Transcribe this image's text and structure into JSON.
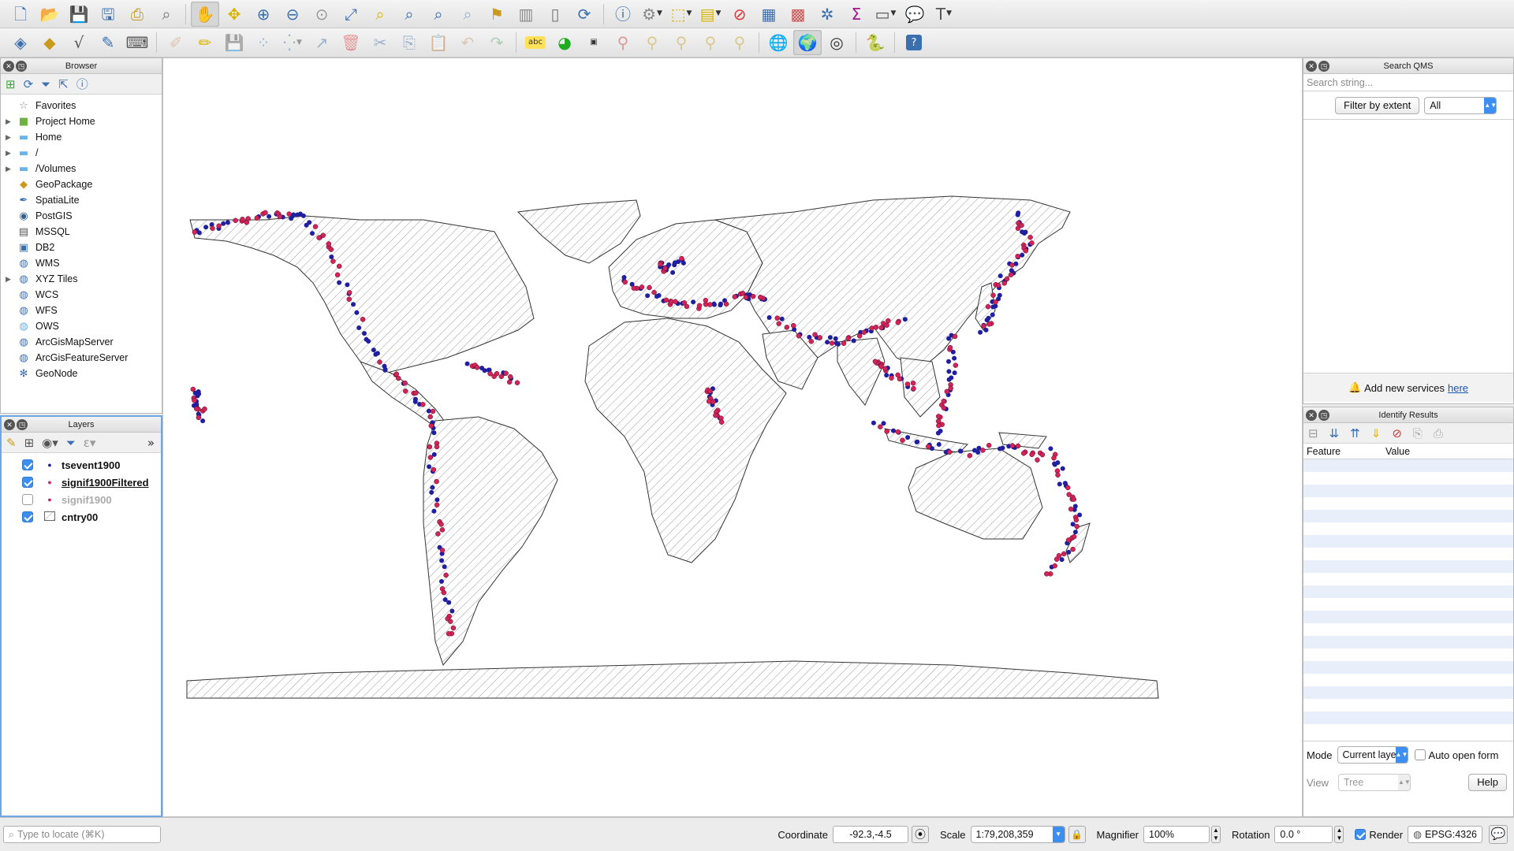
{
  "toolbar1": {
    "icons": [
      "new-project-icon",
      "open-project-icon",
      "save-project-icon",
      "save-as-icon",
      "print-layout-icon",
      "layout-manager-icon",
      "pan-icon",
      "pan-to-selection-icon",
      "zoom-in-icon",
      "zoom-out-icon",
      "zoom-native-icon",
      "zoom-full-icon",
      "zoom-to-selection-icon",
      "zoom-to-layer-icon",
      "zoom-last-icon",
      "zoom-next-icon",
      "new-bookmark-icon",
      "show-bookmarks-icon",
      "temporal-icon",
      "refresh-icon",
      "identify-icon",
      "action-icon",
      "select-feature-icon",
      "deselect-icon",
      "open-attribute-table-icon",
      "statistics-icon",
      "toolbox-icon",
      "statistical-summary-icon",
      "measure-icon",
      "annotation-icon",
      "text-annotation-icon"
    ]
  },
  "toolbar2": {
    "icons": [
      "data-source-manager-icon",
      "new-layer-icon",
      "digitize-icon",
      "edit-icon",
      "toggle-editing-icon",
      "pencil-icon",
      "save-edits-icon",
      "add-feature-icon",
      "vertex-tool-icon",
      "modify-icon",
      "delete-icon",
      "cut-icon",
      "copy-icon",
      "paste-icon",
      "undo-icon",
      "redo-icon",
      "label-icon",
      "diagram-icon",
      "label-highlight-icon",
      "pin-label-icon",
      "show-label-icon",
      "move-label-icon",
      "rotate-label-icon",
      "change-label-icon",
      "globe-plugin-icon",
      "qms-icon",
      "metasearch-icon",
      "python-icon",
      "help-icon"
    ]
  },
  "browser": {
    "title": "Browser",
    "items": [
      {
        "label": "Favorites",
        "icon": "star-icon",
        "glyph": "☆",
        "color": "#888",
        "expandable": false
      },
      {
        "label": "Project Home",
        "icon": "project-home-icon",
        "glyph": "■",
        "color": "#6db33f",
        "expandable": true
      },
      {
        "label": "Home",
        "icon": "folder-icon",
        "glyph": "▬",
        "color": "#6ab3e8",
        "expandable": true
      },
      {
        "label": "/",
        "icon": "folder-icon",
        "glyph": "▬",
        "color": "#6ab3e8",
        "expandable": true
      },
      {
        "label": "/Volumes",
        "icon": "folder-icon",
        "glyph": "▬",
        "color": "#6ab3e8",
        "expandable": true
      },
      {
        "label": "GeoPackage",
        "icon": "geopackage-icon",
        "glyph": "◆",
        "color": "#c99a1d",
        "expandable": false
      },
      {
        "label": "SpatiaLite",
        "icon": "spatialite-icon",
        "glyph": "✒",
        "color": "#3a6fb0",
        "expandable": false
      },
      {
        "label": "PostGIS",
        "icon": "postgis-icon",
        "glyph": "◉",
        "color": "#35618f",
        "expandable": false
      },
      {
        "label": "MSSQL",
        "icon": "mssql-icon",
        "glyph": "▤",
        "color": "#555",
        "expandable": false
      },
      {
        "label": "DB2",
        "icon": "db2-icon",
        "glyph": "▣",
        "color": "#3a6fb0",
        "expandable": false
      },
      {
        "label": "WMS",
        "icon": "wms-icon",
        "glyph": "◍",
        "color": "#3a6fb0",
        "expandable": false
      },
      {
        "label": "XYZ Tiles",
        "icon": "xyz-tiles-icon",
        "glyph": "◍",
        "color": "#3a6fb0",
        "expandable": true
      },
      {
        "label": "WCS",
        "icon": "wcs-icon",
        "glyph": "◍",
        "color": "#3a6fb0",
        "expandable": false
      },
      {
        "label": "WFS",
        "icon": "wfs-icon",
        "glyph": "◍",
        "color": "#3a6fb0",
        "expandable": false
      },
      {
        "label": "OWS",
        "icon": "ows-icon",
        "glyph": "◍",
        "color": "#6ab3e8",
        "expandable": false
      },
      {
        "label": "ArcGisMapServer",
        "icon": "arcgis-map-icon",
        "glyph": "◍",
        "color": "#3a6fb0",
        "expandable": false
      },
      {
        "label": "ArcGisFeatureServer",
        "icon": "arcgis-feature-icon",
        "glyph": "◍",
        "color": "#3a6fb0",
        "expandable": false
      },
      {
        "label": "GeoNode",
        "icon": "geonode-icon",
        "glyph": "✻",
        "color": "#3a6fb0",
        "expandable": false
      }
    ]
  },
  "layers": {
    "title": "Layers",
    "items": [
      {
        "label": "tsevent1900",
        "checked": true,
        "symbol": "point",
        "color": "#1f1fa0",
        "underline": false
      },
      {
        "label": "signif1900Filtered",
        "checked": true,
        "symbol": "point",
        "color": "#d3245a",
        "underline": true
      },
      {
        "label": "signif1900",
        "checked": false,
        "symbol": "point",
        "color": "#d3245a",
        "underline": false
      },
      {
        "label": "cntry00",
        "checked": true,
        "symbol": "hatch",
        "color": "#888888",
        "underline": false
      }
    ]
  },
  "qms": {
    "title": "Search QMS",
    "search_placeholder": "Search string...",
    "filter_button": "Filter by extent",
    "filter_value": "All",
    "add_services_text": "Add new services",
    "add_services_link": "here"
  },
  "identify": {
    "title": "Identify Results",
    "col_feature": "Feature",
    "col_value": "Value",
    "mode_label": "Mode",
    "mode_value": "Current laye",
    "auto_open_label": "Auto open form",
    "view_label": "View",
    "view_value": "Tree",
    "help_button": "Help"
  },
  "status": {
    "locate_placeholder": "Type to locate (⌘K)",
    "coordinate_label": "Coordinate",
    "coordinate_value": "-92.3,-4.5",
    "scale_label": "Scale",
    "scale_value": "1:79,208,359",
    "magnifier_label": "Magnifier",
    "magnifier_value": "100%",
    "rotation_label": "Rotation",
    "rotation_value": "0.0 °",
    "render_label": "Render",
    "crs_value": "EPSG:4326"
  },
  "colors": {
    "tsevent": "#1f1fa0",
    "signif": "#d3245a",
    "accent": "#3c8ff0"
  }
}
